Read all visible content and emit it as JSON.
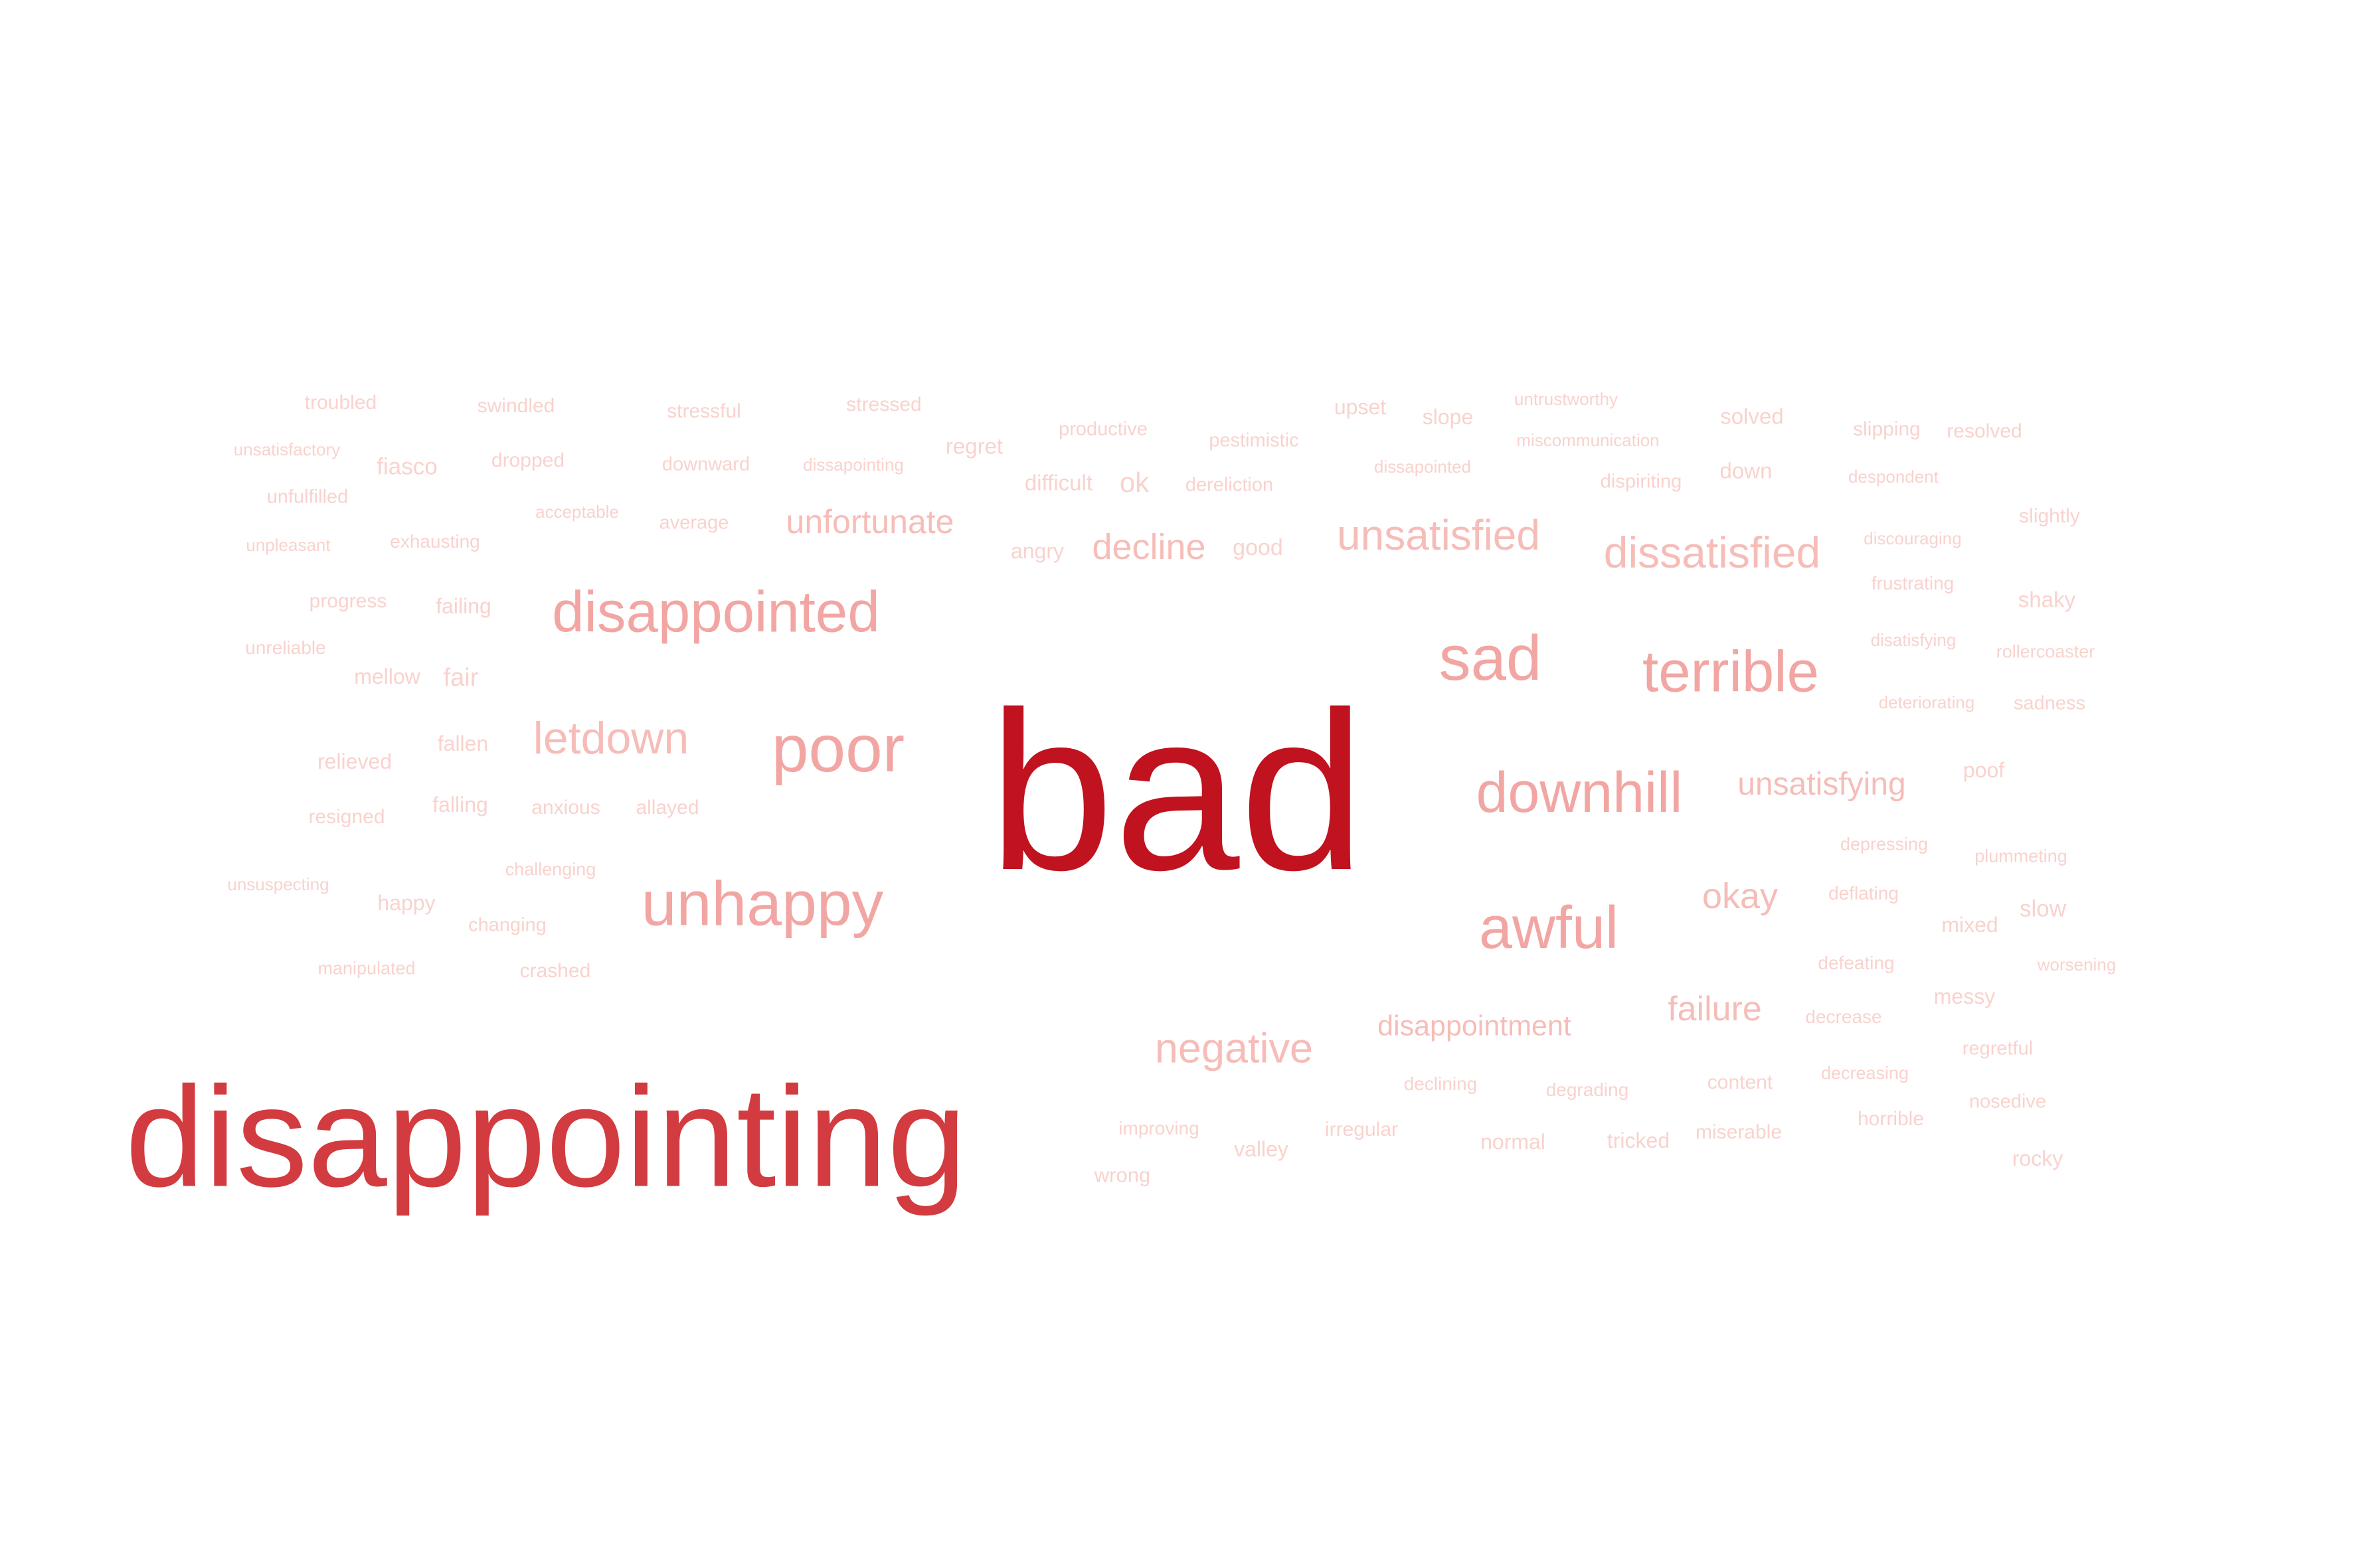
{
  "colors": {
    "dominant": "#c0121f",
    "strong": "#d23b3f",
    "medium": "#f2a6a3",
    "light": "#f6bdb8",
    "faint": "#f9d2cd"
  },
  "words": [
    {
      "text": "bad",
      "weight": 100,
      "tone": "dominant"
    },
    {
      "text": "disappointing",
      "weight": 72,
      "tone": "strong"
    },
    {
      "text": "poor",
      "weight": 30,
      "tone": "medium"
    },
    {
      "text": "unhappy",
      "weight": 26,
      "tone": "medium"
    },
    {
      "text": "disappointed",
      "weight": 25,
      "tone": "medium"
    },
    {
      "text": "sad",
      "weight": 27,
      "tone": "medium"
    },
    {
      "text": "terrible",
      "weight": 25,
      "tone": "medium"
    },
    {
      "text": "downhill",
      "weight": 24,
      "tone": "medium"
    },
    {
      "text": "awful",
      "weight": 26,
      "tone": "medium"
    },
    {
      "text": "letdown",
      "weight": 18,
      "tone": "light"
    },
    {
      "text": "unsatisfied",
      "weight": 18,
      "tone": "light"
    },
    {
      "text": "dissatisfied",
      "weight": 18,
      "tone": "light"
    },
    {
      "text": "negative",
      "weight": 18,
      "tone": "light"
    },
    {
      "text": "unfortunate",
      "weight": 14,
      "tone": "light"
    },
    {
      "text": "decline",
      "weight": 15,
      "tone": "light"
    },
    {
      "text": "unsatisfying",
      "weight": 14,
      "tone": "light"
    },
    {
      "text": "okay",
      "weight": 15,
      "tone": "light"
    },
    {
      "text": "failure",
      "weight": 15,
      "tone": "light"
    },
    {
      "text": "disappointment",
      "weight": 13,
      "tone": "light"
    },
    {
      "text": "troubled",
      "weight": 8,
      "tone": "faint"
    },
    {
      "text": "swindled",
      "weight": 8,
      "tone": "faint"
    },
    {
      "text": "stressful",
      "weight": 8,
      "tone": "faint"
    },
    {
      "text": "stressed",
      "weight": 8,
      "tone": "faint"
    },
    {
      "text": "productive",
      "weight": 8,
      "tone": "faint"
    },
    {
      "text": "pestimistic",
      "weight": 8,
      "tone": "faint"
    },
    {
      "text": "upset",
      "weight": 9,
      "tone": "faint"
    },
    {
      "text": "slope",
      "weight": 9,
      "tone": "faint"
    },
    {
      "text": "untrustworthy",
      "weight": 7,
      "tone": "faint"
    },
    {
      "text": "solved",
      "weight": 9,
      "tone": "faint"
    },
    {
      "text": "slipping",
      "weight": 8,
      "tone": "faint"
    },
    {
      "text": "resolved",
      "weight": 8,
      "tone": "faint"
    },
    {
      "text": "unsatisfactory",
      "weight": 7,
      "tone": "faint"
    },
    {
      "text": "fiasco",
      "weight": 9,
      "tone": "faint"
    },
    {
      "text": "dropped",
      "weight": 8,
      "tone": "faint"
    },
    {
      "text": "downward",
      "weight": 8,
      "tone": "faint"
    },
    {
      "text": "dissapointing",
      "weight": 7,
      "tone": "faint"
    },
    {
      "text": "regret",
      "weight": 9,
      "tone": "faint"
    },
    {
      "text": "miscommunication",
      "weight": 7,
      "tone": "faint"
    },
    {
      "text": "difficult",
      "weight": 9,
      "tone": "faint"
    },
    {
      "text": "ok",
      "weight": 11,
      "tone": "faint"
    },
    {
      "text": "dereliction",
      "weight": 8,
      "tone": "faint"
    },
    {
      "text": "dissapointed",
      "weight": 7,
      "tone": "faint"
    },
    {
      "text": "dispiriting",
      "weight": 8,
      "tone": "faint"
    },
    {
      "text": "down",
      "weight": 9,
      "tone": "faint"
    },
    {
      "text": "despondent",
      "weight": 7,
      "tone": "faint"
    },
    {
      "text": "unfulfilled",
      "weight": 8,
      "tone": "faint"
    },
    {
      "text": "acceptable",
      "weight": 7,
      "tone": "faint"
    },
    {
      "text": "average",
      "weight": 8,
      "tone": "faint"
    },
    {
      "text": "slightly",
      "weight": 8,
      "tone": "faint"
    },
    {
      "text": "unpleasant",
      "weight": 7,
      "tone": "faint"
    },
    {
      "text": "exhausting",
      "weight": 7,
      "tone": "faint"
    },
    {
      "text": "angry",
      "weight": 8,
      "tone": "faint"
    },
    {
      "text": "good",
      "weight": 9,
      "tone": "faint"
    },
    {
      "text": "discouraging",
      "weight": 7,
      "tone": "faint"
    },
    {
      "text": "frustrating",
      "weight": 7,
      "tone": "faint"
    },
    {
      "text": "progress",
      "weight": 8,
      "tone": "faint"
    },
    {
      "text": "failing",
      "weight": 8,
      "tone": "faint"
    },
    {
      "text": "shaky",
      "weight": 8,
      "tone": "faint"
    },
    {
      "text": "unreliable",
      "weight": 7,
      "tone": "faint"
    },
    {
      "text": "disatisfying",
      "weight": 7,
      "tone": "faint"
    },
    {
      "text": "rollercoaster",
      "weight": 7,
      "tone": "faint"
    },
    {
      "text": "mellow",
      "weight": 8,
      "tone": "faint"
    },
    {
      "text": "fair",
      "weight": 9,
      "tone": "faint"
    },
    {
      "text": "deteriorating",
      "weight": 7,
      "tone": "faint"
    },
    {
      "text": "sadness",
      "weight": 8,
      "tone": "faint"
    },
    {
      "text": "fallen",
      "weight": 8,
      "tone": "faint"
    },
    {
      "text": "relieved",
      "weight": 8,
      "tone": "faint"
    },
    {
      "text": "poof",
      "weight": 8,
      "tone": "faint"
    },
    {
      "text": "falling",
      "weight": 8,
      "tone": "faint"
    },
    {
      "text": "anxious",
      "weight": 8,
      "tone": "faint"
    },
    {
      "text": "allayed",
      "weight": 8,
      "tone": "faint"
    },
    {
      "text": "resigned",
      "weight": 8,
      "tone": "faint"
    },
    {
      "text": "depressing",
      "weight": 7,
      "tone": "faint"
    },
    {
      "text": "plummeting",
      "weight": 7,
      "tone": "faint"
    },
    {
      "text": "challenging",
      "weight": 7,
      "tone": "faint"
    },
    {
      "text": "unsuspecting",
      "weight": 7,
      "tone": "faint"
    },
    {
      "text": "happy",
      "weight": 8,
      "tone": "faint"
    },
    {
      "text": "deflating",
      "weight": 7,
      "tone": "faint"
    },
    {
      "text": "changing",
      "weight": 7,
      "tone": "faint"
    },
    {
      "text": "mixed",
      "weight": 8,
      "tone": "faint"
    },
    {
      "text": "slow",
      "weight": 8,
      "tone": "faint"
    },
    {
      "text": "manipulated",
      "weight": 7,
      "tone": "faint"
    },
    {
      "text": "crashed",
      "weight": 8,
      "tone": "faint"
    },
    {
      "text": "defeating",
      "weight": 7,
      "tone": "faint"
    },
    {
      "text": "worsening",
      "weight": 7,
      "tone": "faint"
    },
    {
      "text": "messy",
      "weight": 8,
      "tone": "faint"
    },
    {
      "text": "decrease",
      "weight": 7,
      "tone": "faint"
    },
    {
      "text": "regretful",
      "weight": 7,
      "tone": "faint"
    },
    {
      "text": "declining",
      "weight": 7,
      "tone": "faint"
    },
    {
      "text": "degrading",
      "weight": 7,
      "tone": "faint"
    },
    {
      "text": "content",
      "weight": 8,
      "tone": "faint"
    },
    {
      "text": "decreasing",
      "weight": 7,
      "tone": "faint"
    },
    {
      "text": "nosedive",
      "weight": 7,
      "tone": "faint"
    },
    {
      "text": "improving",
      "weight": 7,
      "tone": "faint"
    },
    {
      "text": "irregular",
      "weight": 7,
      "tone": "faint"
    },
    {
      "text": "horrible",
      "weight": 7,
      "tone": "faint"
    },
    {
      "text": "valley",
      "weight": 8,
      "tone": "faint"
    },
    {
      "text": "normal",
      "weight": 8,
      "tone": "faint"
    },
    {
      "text": "tricked",
      "weight": 8,
      "tone": "faint"
    },
    {
      "text": "miserable",
      "weight": 7,
      "tone": "faint"
    },
    {
      "text": "rocky",
      "weight": 8,
      "tone": "faint"
    },
    {
      "text": "wrong",
      "weight": 8,
      "tone": "faint"
    }
  ]
}
